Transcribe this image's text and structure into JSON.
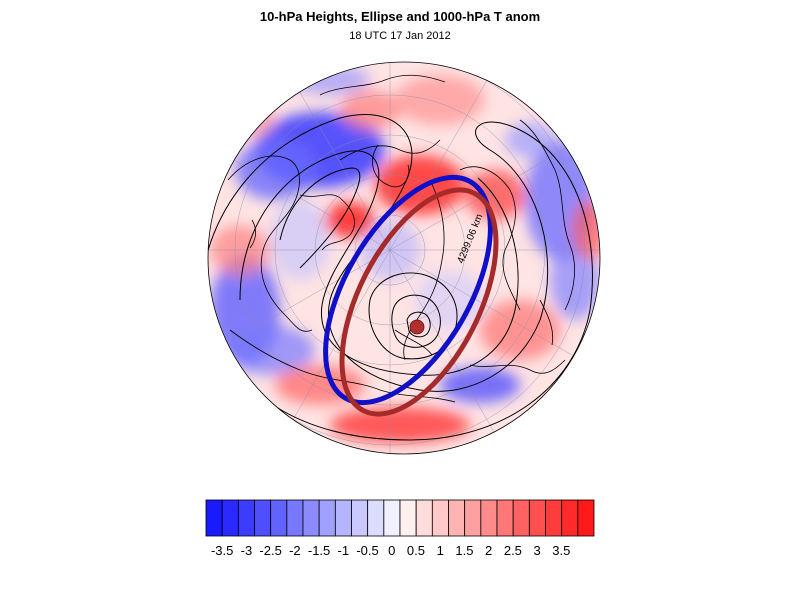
{
  "title": "10-hPa Heights, Ellipse and 1000-hPa T anom",
  "subtitle": "18 UTC 17 Jan 2012",
  "ellipse_label": "4299.06 km",
  "colorbar": {
    "colors": [
      "#1a1aff",
      "#2a2aff",
      "#3c3cff",
      "#4f4fff",
      "#6262ff",
      "#7777ff",
      "#8b8bff",
      "#a0a0ff",
      "#b4b4ff",
      "#c9c9ff",
      "#dcdcff",
      "#f0f0ff",
      "#fff0f0",
      "#ffdcdc",
      "#ffc9c9",
      "#ffb4b4",
      "#ffa0a0",
      "#ff8b8b",
      "#ff7777",
      "#ff6262",
      "#ff4f4f",
      "#ff3c3c",
      "#ff2a2a",
      "#ff1a1a"
    ],
    "labels": [
      "-3.5",
      "-3",
      "-2.5",
      "-2",
      "-1.5",
      "-1",
      "-0.5",
      "0",
      "0.5",
      "1",
      "1.5",
      "2",
      "2.5",
      "3",
      "3.5"
    ]
  },
  "colors": {
    "ellipse_blue": "#1010c8",
    "ellipse_red": "#a52a2a",
    "center_dot": "#b03030"
  }
}
